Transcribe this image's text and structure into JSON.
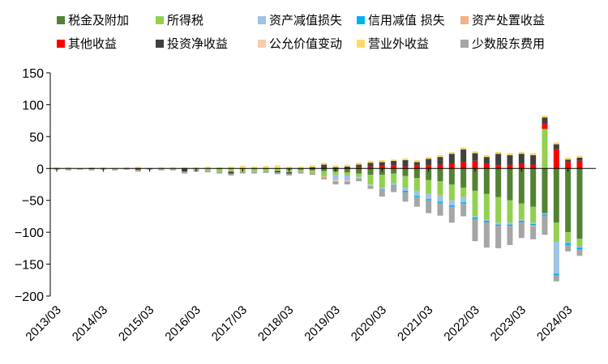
{
  "chart_data": {
    "type": "bar",
    "stacked": true,
    "title": "",
    "xlabel": "",
    "ylabel": "",
    "ylim": [
      -200,
      150
    ],
    "yticks": [
      -200,
      -150,
      -100,
      -50,
      0,
      50,
      100,
      150
    ],
    "legend_position": "top",
    "x_tick_labels": [
      "2013/03",
      "2014/03",
      "2015/03",
      "2016/03",
      "2017/03",
      "2018/03",
      "2019/03",
      "2020/03",
      "2021/03",
      "2022/03",
      "2023/03",
      "2024/03"
    ],
    "periods": [
      "2013/03",
      "2013/06",
      "2013/09",
      "2013/12",
      "2014/03",
      "2014/06",
      "2014/09",
      "2014/12",
      "2015/03",
      "2015/06",
      "2015/09",
      "2015/12",
      "2016/03",
      "2016/06",
      "2016/09",
      "2016/12",
      "2017/03",
      "2017/06",
      "2017/09",
      "2017/12",
      "2018/03",
      "2018/06",
      "2018/09",
      "2018/12",
      "2019/03",
      "2019/06",
      "2019/09",
      "2019/12",
      "2020/03",
      "2020/06",
      "2020/09",
      "2020/12",
      "2021/03",
      "2021/06",
      "2021/09",
      "2021/12",
      "2022/03",
      "2022/06",
      "2022/09",
      "2022/12",
      "2023/03",
      "2023/06",
      "2023/09",
      "2023/12",
      "2024/03",
      "2024/06"
    ],
    "series": [
      {
        "name": "税金及附加",
        "color": "#548235",
        "values": [
          0,
          0,
          0,
          0,
          0,
          0,
          0,
          0,
          0,
          0,
          0,
          0,
          0,
          0,
          -1,
          -1,
          -1,
          -1,
          -1,
          -1,
          -2,
          -2,
          -3,
          -4,
          -5,
          -6,
          -8,
          -10,
          -10,
          -8,
          -12,
          -15,
          -18,
          -20,
          -25,
          -30,
          -35,
          -40,
          -45,
          -50,
          -55,
          -60,
          -70,
          -85,
          -100,
          -110
        ]
      },
      {
        "name": "所得税",
        "color": "#92D050",
        "values": [
          0,
          0,
          0,
          0,
          0,
          0,
          0,
          0,
          0,
          0,
          0,
          0,
          -2,
          -3,
          -4,
          -4,
          -4,
          -4,
          -3,
          -3,
          -4,
          -3,
          -4,
          -8,
          -5,
          -5,
          -5,
          -15,
          -20,
          -15,
          -18,
          -20,
          -22,
          -22,
          -25,
          -15,
          -40,
          -40,
          -40,
          -35,
          -25,
          -25,
          62,
          -30,
          -15,
          -12
        ]
      },
      {
        "name": "资产减值损失",
        "color": "#9DC3E6",
        "values": [
          0,
          0,
          0,
          0,
          0,
          0,
          0,
          0,
          0,
          0,
          0,
          0,
          0,
          0,
          0,
          0,
          0,
          0,
          0,
          0,
          0,
          0,
          0,
          0,
          -8,
          -8,
          -1,
          -1,
          -3,
          -3,
          -5,
          -8,
          -8,
          -10,
          -8,
          -8,
          -2,
          -2,
          -3,
          -3,
          -2,
          -2,
          -2,
          -50,
          -2,
          -2
        ]
      },
      {
        "name": "信用减值  损失",
        "color": "#00B0F0",
        "values": [
          0,
          0,
          0,
          0,
          0,
          0,
          0,
          0,
          0,
          0,
          0,
          0,
          0,
          0,
          0,
          0,
          0,
          0,
          0,
          0,
          0,
          0,
          0,
          0,
          0,
          0,
          0,
          0,
          -1,
          -1,
          -2,
          -2,
          -2,
          -2,
          -2,
          -2,
          -2,
          -2,
          -2,
          -2,
          -2,
          -2,
          -2,
          -2,
          -3,
          -3
        ]
      },
      {
        "name": "资产处置收益",
        "color": "#F4B183",
        "values": [
          0,
          0,
          0,
          0,
          0,
          0,
          0,
          0,
          0,
          0,
          0,
          0,
          0,
          0,
          0,
          0,
          0,
          0,
          0,
          0,
          0,
          0,
          0,
          -2,
          0,
          0,
          0,
          0,
          0,
          0,
          0,
          0,
          0,
          0,
          0,
          0,
          0,
          0,
          0,
          0,
          0,
          -2,
          0,
          0,
          0,
          0
        ]
      },
      {
        "name": "其他收益",
        "color": "#FF0000",
        "values": [
          0,
          0,
          0,
          0,
          0,
          0,
          0,
          0,
          0,
          0,
          0,
          0,
          0,
          0,
          0,
          0,
          0,
          0,
          0,
          0,
          0,
          0,
          0,
          0,
          1,
          1,
          2,
          3,
          4,
          5,
          3,
          5,
          5,
          6,
          8,
          10,
          12,
          8,
          5,
          6,
          8,
          6,
          8,
          30,
          10,
          12
        ]
      },
      {
        "name": "投资净收益",
        "color": "#404040",
        "values": [
          0,
          0,
          0,
          -1,
          0,
          0,
          0,
          -2,
          0,
          0,
          0,
          -5,
          0,
          0,
          0,
          -3,
          0,
          0,
          0,
          -2,
          -2,
          0,
          2,
          6,
          1,
          2,
          4,
          6,
          6,
          7,
          10,
          5,
          10,
          12,
          15,
          20,
          12,
          10,
          18,
          15,
          15,
          15,
          10,
          8,
          4,
          5
        ]
      },
      {
        "name": "公允价值变动",
        "color": "#F8CBAD",
        "values": [
          0,
          0,
          0,
          0,
          0,
          0,
          0,
          0,
          0,
          0,
          0,
          0,
          0,
          0,
          0,
          0,
          0,
          0,
          0,
          0,
          0,
          0,
          0,
          0,
          -2,
          -1,
          -1,
          -1,
          0,
          0,
          0,
          0,
          0,
          0,
          0,
          0,
          0,
          0,
          0,
          0,
          0,
          0,
          0,
          0,
          0,
          0
        ]
      },
      {
        "name": "营业外收益",
        "color": "#FFD966",
        "values": [
          2,
          2,
          1,
          2,
          2,
          1,
          2,
          3,
          1,
          2,
          2,
          2,
          2,
          3,
          2,
          3,
          4,
          3,
          4,
          5,
          3,
          3,
          3,
          3,
          3,
          3,
          3,
          3,
          3,
          2,
          3,
          3,
          3,
          3,
          3,
          3,
          3,
          3,
          3,
          3,
          3,
          3,
          3,
          3,
          3,
          3
        ]
      },
      {
        "name": "少数股东费用",
        "color": "#A6A6A6",
        "values": [
          -2,
          -3,
          -2,
          -2,
          -2,
          -3,
          -2,
          -3,
          -2,
          -3,
          -3,
          -3,
          -3,
          -3,
          -3,
          -3,
          -3,
          -3,
          -3,
          -3,
          -3,
          -3,
          -3,
          -3,
          -5,
          -5,
          -5,
          -5,
          -10,
          -10,
          -15,
          -15,
          -20,
          -20,
          -25,
          -20,
          -35,
          -40,
          -35,
          -30,
          -25,
          -20,
          -30,
          -10,
          -10,
          -10
        ]
      }
    ]
  }
}
